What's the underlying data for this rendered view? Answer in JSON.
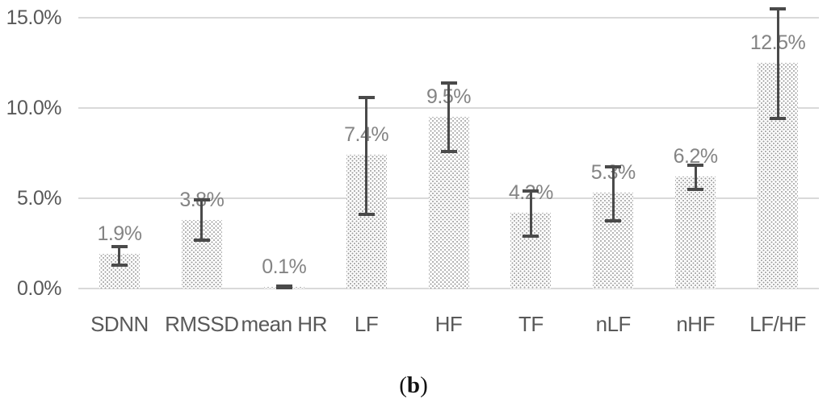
{
  "caption": {
    "label": "(b)",
    "paren_open": "(",
    "bold_letter": "b",
    "paren_close": ")"
  },
  "colors": {
    "background": "#ffffff",
    "gridline": "#d9d9d9",
    "error_bar": "#4a4a4a",
    "axis_text": "#595959",
    "data_label_text": "#848484",
    "bar_dot": "#9e9e9e",
    "bar_fill": "#ffffff"
  },
  "chart_data": {
    "type": "bar",
    "title": "",
    "xlabel": "",
    "ylabel": "",
    "categories": [
      "SDNN",
      "RMSSD",
      "mean HR",
      "LF",
      "HF",
      "TF",
      "nLF",
      "nHF",
      "LF/HF"
    ],
    "values": [
      1.9,
      3.8,
      0.1,
      7.4,
      9.5,
      4.2,
      5.3,
      6.2,
      12.5
    ],
    "data_labels": [
      "1.9%",
      "3.8%",
      "0.1%",
      "7.4%",
      "9.5%",
      "4.2%",
      "5.3%",
      "6.2%",
      "12.5%"
    ],
    "error_low": [
      1.3,
      2.7,
      0.05,
      4.1,
      7.6,
      2.9,
      3.75,
      5.5,
      9.4
    ],
    "error_high": [
      2.3,
      4.9,
      0.15,
      10.6,
      11.4,
      5.4,
      6.75,
      6.85,
      15.5
    ],
    "y_axis": {
      "tick_values": [
        0,
        5,
        10,
        15
      ],
      "tick_labels": [
        "0.0%",
        "5.0%",
        "10.0%",
        "15.0%"
      ],
      "range": [
        0,
        15
      ],
      "unit": "percent"
    },
    "grid": true,
    "legend": false,
    "bar_style": "dotted-pattern",
    "error_bars": true
  }
}
